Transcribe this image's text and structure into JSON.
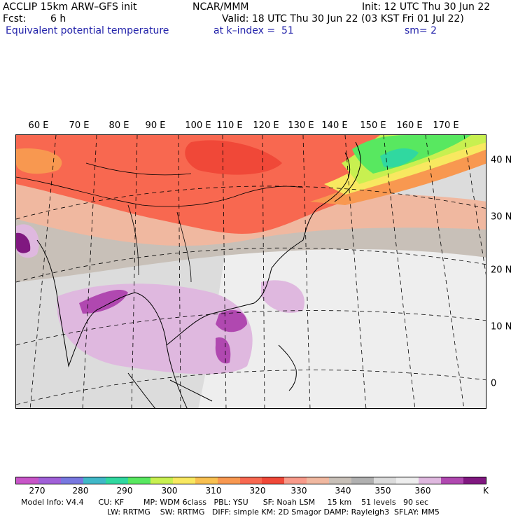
{
  "header": {
    "model": "ACCLIP 15km ARW–GFS init",
    "org": "NCAR/MMM",
    "init": "Init: 12 UTC Thu 30 Jun 22",
    "fcst_label": "Fcst:",
    "fcst_value": "6 h",
    "valid": "Valid: 18 UTC Thu 30 Jun 22 (03 KST Fri 01 Jul 22)",
    "field": "Equivalent potential temperature",
    "level": "at k–index =  51",
    "smooth": "sm= 2"
  },
  "map": {
    "lon_labels": [
      "60 E",
      "70 E",
      "80 E",
      "90 E",
      "100 E",
      "110 E",
      "120 E",
      "130 E",
      "140 E",
      "150 E",
      "160 E",
      "170 E"
    ],
    "lat_labels": [
      "40 N",
      "30 N",
      "20 N",
      "10 N",
      "0"
    ]
  },
  "colorbar": {
    "unit": "K",
    "tick_labels": [
      "270",
      "280",
      "290",
      "300",
      "310",
      "320",
      "330",
      "340",
      "350",
      "360"
    ],
    "colors": [
      "#c855c8",
      "#a060d8",
      "#7878e0",
      "#40b8c8",
      "#30d8a0",
      "#58e860",
      "#c8f050",
      "#f8e860",
      "#f8c050",
      "#f89850",
      "#f86850",
      "#f04838",
      "#f89a8a",
      "#f0b8a0",
      "#c8c0b8",
      "#b0b0b0",
      "#dcdcdc",
      "#eeeeee",
      "#dfb8df",
      "#b048b0",
      "#801880"
    ]
  },
  "footer": {
    "line1": "Model Info: V4.4      CU: KF        MP: WDM 6class   PBL: YSU      SF: Noah LSM     15 km    51 levels   90 sec",
    "line2": "LW: RRTMG    SW: RRTMG   DIFF: simple KM: 2D Smagor DAMP: Rayleigh3  SFLAY: MM5"
  }
}
